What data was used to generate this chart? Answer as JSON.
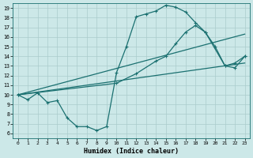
{
  "xlabel": "Humidex (Indice chaleur)",
  "xlim": [
    -0.5,
    23.5
  ],
  "ylim": [
    5.5,
    19.5
  ],
  "xticks": [
    0,
    1,
    2,
    3,
    4,
    5,
    6,
    7,
    8,
    9,
    10,
    11,
    12,
    13,
    14,
    15,
    16,
    17,
    18,
    19,
    20,
    21,
    22,
    23
  ],
  "yticks": [
    6,
    7,
    8,
    9,
    10,
    11,
    12,
    13,
    14,
    15,
    16,
    17,
    18,
    19
  ],
  "bg_color": "#cce8e8",
  "line_color": "#1a7070",
  "grid_color": "#aacccc",
  "line1_x": [
    0,
    1,
    2,
    3,
    4,
    5,
    6,
    7,
    8,
    9,
    10,
    11,
    12,
    13,
    14,
    15,
    16,
    17,
    18,
    19,
    20,
    21,
    22,
    23
  ],
  "line1_y": [
    10.0,
    9.5,
    10.2,
    9.2,
    9.4,
    7.6,
    6.7,
    6.7,
    6.3,
    6.7,
    12.3,
    15.0,
    18.1,
    18.4,
    18.7,
    19.3,
    19.1,
    18.6,
    17.5,
    16.5,
    15.0,
    13.0,
    13.3,
    14.0
  ],
  "line2_x": [
    0,
    10,
    12,
    14,
    15,
    16,
    17,
    18,
    19,
    21,
    22,
    23
  ],
  "line2_y": [
    10.0,
    11.2,
    12.2,
    13.5,
    14.0,
    15.3,
    16.5,
    17.2,
    16.5,
    13.0,
    12.8,
    14.0
  ],
  "line3_x": [
    0,
    23
  ],
  "line3_y": [
    10.0,
    16.3
  ],
  "line4_x": [
    0,
    23
  ],
  "line4_y": [
    10.0,
    13.3
  ]
}
